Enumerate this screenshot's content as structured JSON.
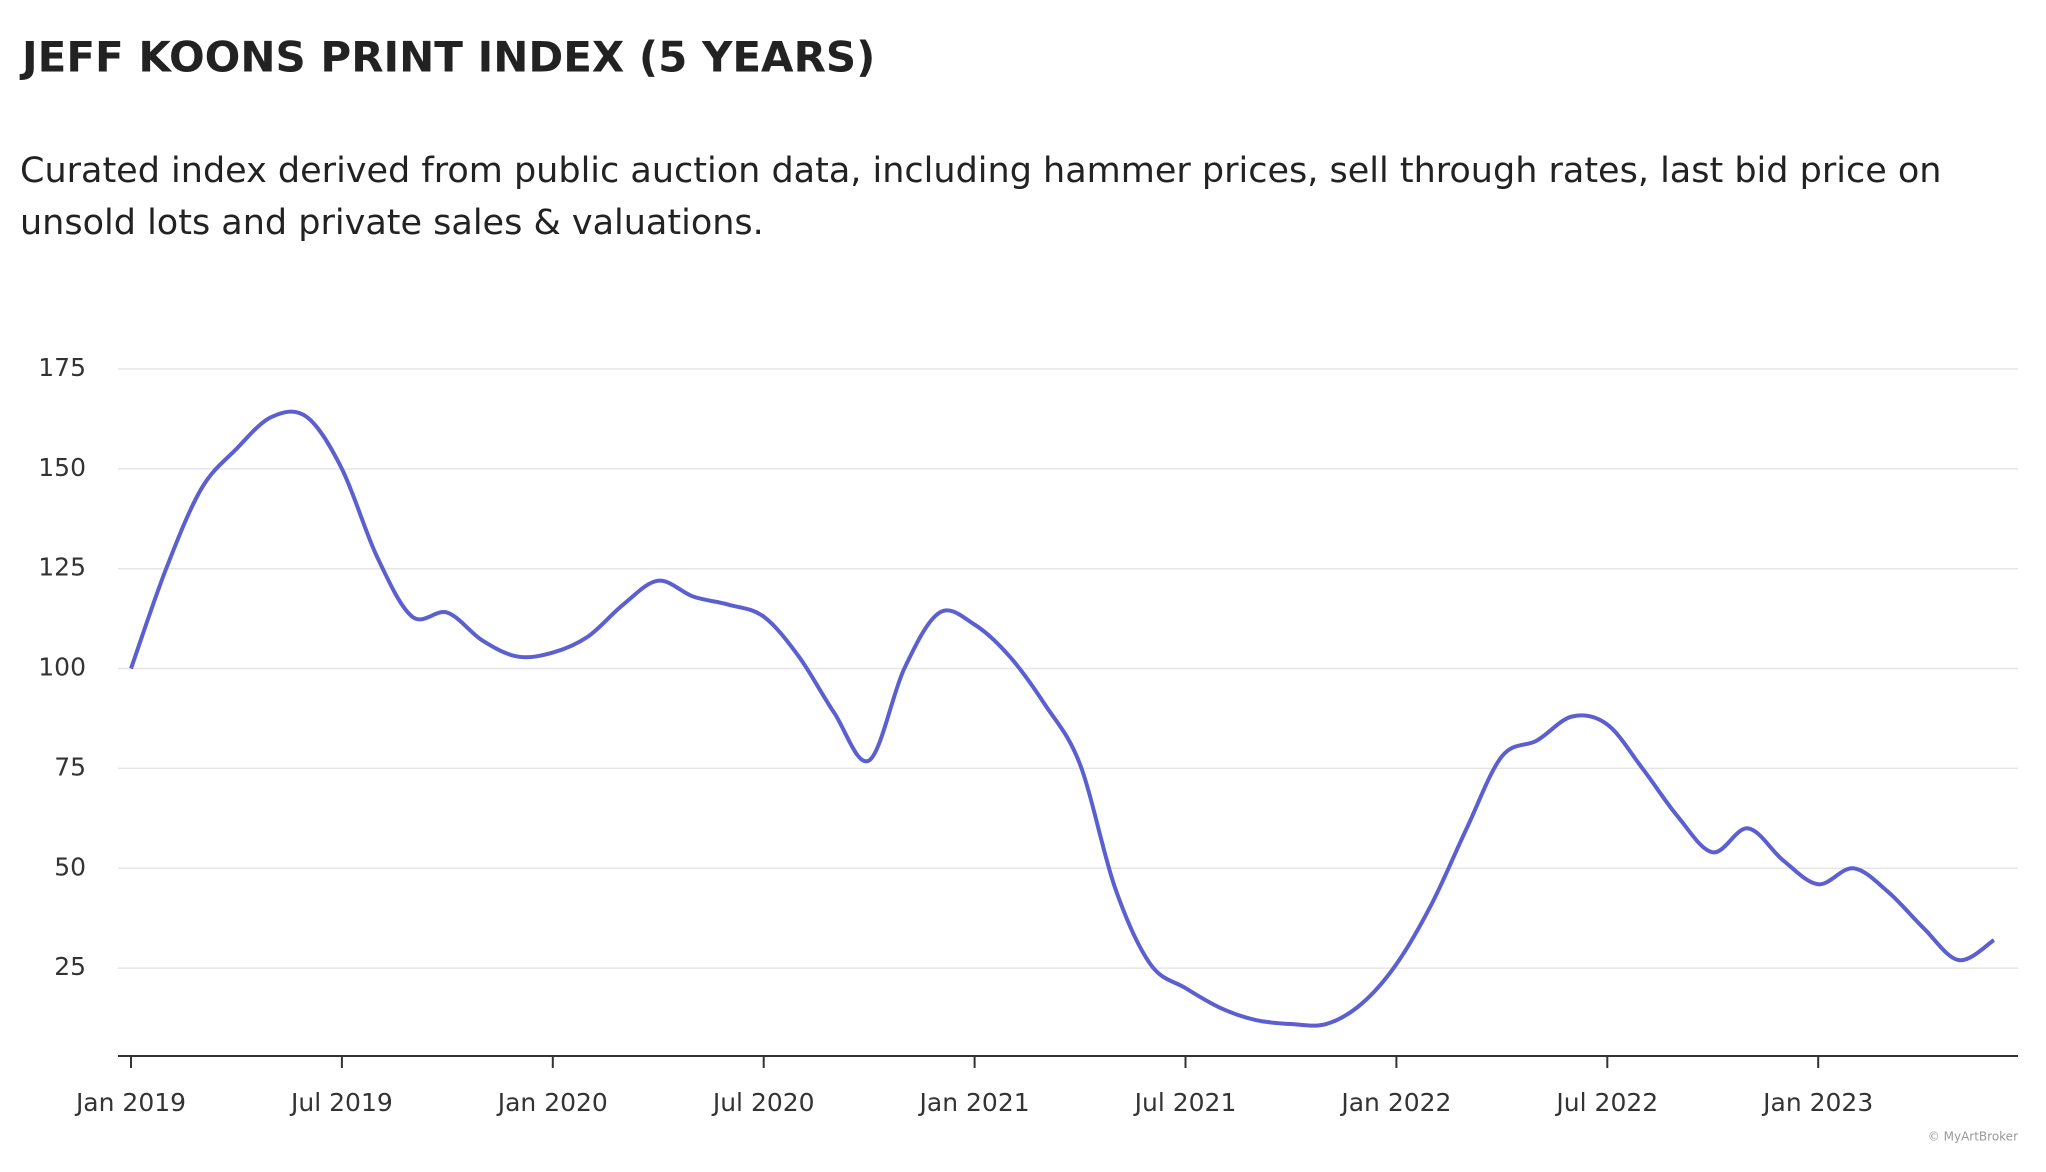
{
  "chart_data": {
    "type": "line",
    "title": "JEFF KOONS PRINT INDEX (5 YEARS)",
    "subtitle": "Curated index derived from public auction data, including hammer prices, sell through rates, last bid price on unsold lots and private sales & valuations.",
    "footnote": "© MyArtBroker",
    "x": [
      "2019-01",
      "2019-02",
      "2019-03",
      "2019-04",
      "2019-05",
      "2019-06",
      "2019-07",
      "2019-08",
      "2019-09",
      "2019-10",
      "2019-11",
      "2019-12",
      "2020-01",
      "2020-02",
      "2020-03",
      "2020-04",
      "2020-05",
      "2020-06",
      "2020-07",
      "2020-08",
      "2020-09",
      "2020-10",
      "2020-11",
      "2020-12",
      "2021-01",
      "2021-02",
      "2021-03",
      "2021-04",
      "2021-05",
      "2021-06",
      "2021-07",
      "2021-08",
      "2021-09",
      "2021-10",
      "2021-11",
      "2021-12",
      "2022-01",
      "2022-02",
      "2022-03",
      "2022-04",
      "2022-05",
      "2022-06",
      "2022-07",
      "2022-08",
      "2022-09",
      "2022-10",
      "2022-11",
      "2022-12",
      "2023-01",
      "2023-02",
      "2023-03",
      "2023-04",
      "2023-05",
      "2023-06"
    ],
    "series": [
      {
        "name": "Jeff Koons Print Index",
        "color": "#5b5fd0",
        "values": [
          100,
          125,
          145,
          155,
          163,
          163,
          150,
          128,
          113,
          114,
          107,
          103,
          104,
          108,
          116,
          122,
          118,
          116,
          113,
          103,
          89,
          77,
          100,
          114,
          111,
          103,
          91,
          76,
          45,
          26,
          20,
          15,
          12,
          11,
          11,
          16,
          26,
          41,
          60,
          78,
          82,
          88,
          86,
          75,
          63,
          54,
          60,
          52,
          46,
          50,
          44,
          35,
          27,
          32
        ]
      }
    ],
    "xlim": [
      "2019-01",
      "2023-06"
    ],
    "xticks": [
      {
        "value": "2019-01",
        "label": "Jan 2019"
      },
      {
        "value": "2019-07",
        "label": "Jul 2019"
      },
      {
        "value": "2020-01",
        "label": "Jan 2020"
      },
      {
        "value": "2020-07",
        "label": "Jul 2020"
      },
      {
        "value": "2021-01",
        "label": "Jan 2021"
      },
      {
        "value": "2021-07",
        "label": "Jul 2021"
      },
      {
        "value": "2022-01",
        "label": "Jan 2022"
      },
      {
        "value": "2022-07",
        "label": "Jul 2022"
      },
      {
        "value": "2023-01",
        "label": "Jan 2023"
      }
    ],
    "ylim": [
      3,
      176
    ],
    "yticks": [
      25,
      50,
      75,
      100,
      125,
      150,
      175
    ],
    "grid": true
  }
}
